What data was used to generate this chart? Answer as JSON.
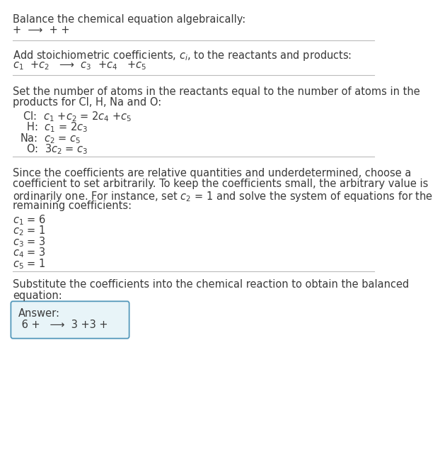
{
  "title": "Balance the chemical equation algebraically:",
  "line1": "+  ⟶  + +",
  "section2_title": "Add stoichiometric coefficients, $c_i$, to the reactants and products:",
  "line2": "$c_1$  +$c_2$   ⟶  $c_3$  +$c_4$   +$c_5$",
  "section3_line1": "Set the number of atoms in the reactants equal to the number of atoms in the",
  "section3_line2": "products for Cl, H, Na and O:",
  "equations": [
    [
      " Cl: ",
      " $c_1$ +$c_2$ = 2$c_4$ +$c_5$"
    ],
    [
      "  H: ",
      " $c_1$ = 2$c_3$"
    ],
    [
      "Na: ",
      " $c_2$ = $c_5$"
    ],
    [
      "  O: ",
      " 3$c_2$ = $c_3$"
    ]
  ],
  "section4_lines": [
    "Since the coefficients are relative quantities and underdetermined, choose a",
    "coefficient to set arbitrarily. To keep the coefficients small, the arbitrary value is",
    "ordinarily one. For instance, set $c_2$ = 1 and solve the system of equations for the",
    "remaining coefficients:"
  ],
  "coefficients": [
    "$c_1$ = 6",
    "$c_2$ = 1",
    "$c_3$ = 3",
    "$c_4$ = 3",
    "$c_5$ = 1"
  ],
  "section5_line1": "Substitute the coefficients into the chemical reaction to obtain the balanced",
  "section5_line2": "equation:",
  "answer_label": "Answer:",
  "answer_line": " 6 +   ⟶  3 +3 +",
  "bg_color": "#ffffff",
  "text_color": "#3a3a3a",
  "line_color": "#bbbbbb",
  "answer_box_facecolor": "#e8f4f8",
  "answer_box_edgecolor": "#5599bb",
  "base_fontsize": 10.5
}
